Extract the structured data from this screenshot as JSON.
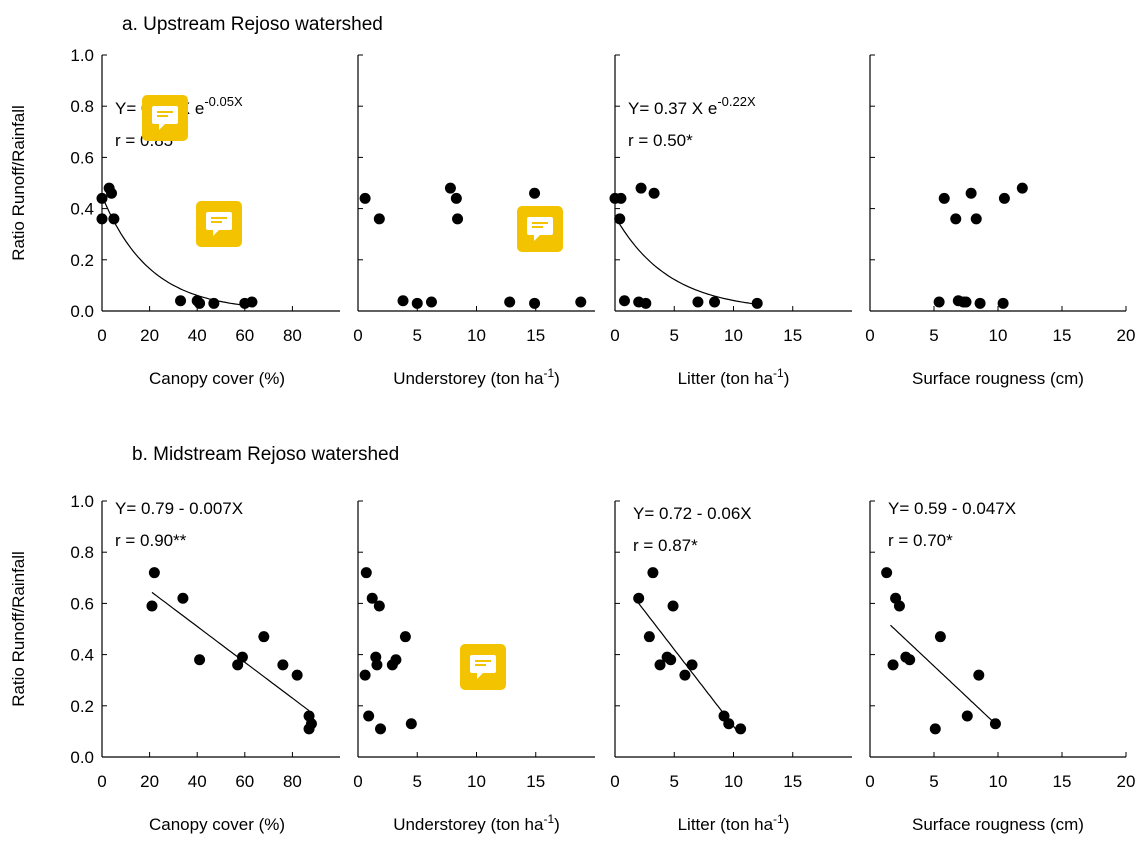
{
  "chart_data": [
    {
      "type": "scatter",
      "row_title": "a. Upstream Rejoso watershed",
      "ylabel": "Ratio Runoff/Rainfall",
      "ylim": [
        0,
        1.0
      ],
      "yticks": [
        "0.0",
        "0.2",
        "0.4",
        "0.6",
        "0.8",
        "1.0"
      ],
      "panels": [
        {
          "xlabel": "Canopy cover (%)",
          "xlim": [
            0,
            100
          ],
          "xticks": [
            "0",
            "20",
            "40",
            "60",
            "80"
          ],
          "points": [
            [
              0,
              0.44
            ],
            [
              0,
              0.36
            ],
            [
              3,
              0.48
            ],
            [
              4,
              0.46
            ],
            [
              5,
              0.36
            ],
            [
              33,
              0.04
            ],
            [
              40,
              0.04
            ],
            [
              41,
              0.03
            ],
            [
              47,
              0.03
            ],
            [
              60,
              0.03
            ],
            [
              63,
              0.035
            ]
          ],
          "fit": {
            "kind": "exp",
            "a": 0.45,
            "b": 0.05,
            "x_from": 0,
            "x_to": 60
          },
          "equation": [
            "Y= 0.45 X e",
            "-0.05X"
          ],
          "r_text": "r = 0.85**"
        },
        {
          "xlabel": "Understorey (ton ha",
          "xlabel_sup": "-1",
          "xlabel_end": ")",
          "xlim": [
            0,
            20
          ],
          "xticks": [
            "0",
            "5",
            "10",
            "15"
          ],
          "points": [
            [
              0.6,
              0.44
            ],
            [
              1.8,
              0.36
            ],
            [
              3.8,
              0.04
            ],
            [
              5,
              0.03
            ],
            [
              6.2,
              0.035
            ],
            [
              7.8,
              0.48
            ],
            [
              8.3,
              0.44
            ],
            [
              8.4,
              0.36
            ],
            [
              12.8,
              0.035
            ],
            [
              14.9,
              0.46
            ],
            [
              14.9,
              0.03
            ],
            [
              18.8,
              0.035
            ]
          ],
          "fit": null,
          "equation": null,
          "r_text": null
        },
        {
          "xlabel": "Litter (ton ha",
          "xlabel_sup": "-1",
          "xlabel_end": ")",
          "xlim": [
            0,
            20
          ],
          "xticks": [
            "0",
            "5",
            "10",
            "15"
          ],
          "points": [
            [
              0,
              0.44
            ],
            [
              0.4,
              0.36
            ],
            [
              0.5,
              0.44
            ],
            [
              0.8,
              0.04
            ],
            [
              2,
              0.035
            ],
            [
              2.2,
              0.48
            ],
            [
              2.6,
              0.03
            ],
            [
              3.3,
              0.46
            ],
            [
              7,
              0.035
            ],
            [
              8.4,
              0.035
            ],
            [
              12,
              0.03
            ]
          ],
          "fit": {
            "kind": "exp",
            "a": 0.37,
            "b": 0.22,
            "x_from": 0,
            "x_to": 12
          },
          "equation": [
            "Y= 0.37 X e",
            "-0.22X"
          ],
          "r_text": "r = 0.50*"
        },
        {
          "xlabel": "Surface rougness (cm)",
          "xlim": [
            0,
            20
          ],
          "xticks": [
            "0",
            "5",
            "10",
            "15",
            "20"
          ],
          "points": [
            [
              5.4,
              0.035
            ],
            [
              5.8,
              0.44
            ],
            [
              6.7,
              0.36
            ],
            [
              6.9,
              0.04
            ],
            [
              7.3,
              0.035
            ],
            [
              7.5,
              0.035
            ],
            [
              7.9,
              0.46
            ],
            [
              8.3,
              0.36
            ],
            [
              8.6,
              0.03
            ],
            [
              10.4,
              0.03
            ],
            [
              10.5,
              0.44
            ],
            [
              11.9,
              0.48
            ]
          ],
          "fit": null,
          "equation": null,
          "r_text": null
        }
      ]
    },
    {
      "type": "scatter",
      "row_title": "b. Midstream Rejoso watershed",
      "ylabel": "Ratio Runoff/Rainfall",
      "ylim": [
        0,
        1.0
      ],
      "yticks": [
        "0.0",
        "0.2",
        "0.4",
        "0.6",
        "0.8",
        "1.0"
      ],
      "panels": [
        {
          "xlabel": "Canopy cover (%)",
          "xlim": [
            0,
            100
          ],
          "xticks": [
            "0",
            "20",
            "40",
            "60",
            "80"
          ],
          "points": [
            [
              21,
              0.59
            ],
            [
              22,
              0.72
            ],
            [
              34,
              0.62
            ],
            [
              41,
              0.38
            ],
            [
              57,
              0.36
            ],
            [
              59,
              0.39
            ],
            [
              68,
              0.47
            ],
            [
              76,
              0.36
            ],
            [
              82,
              0.32
            ],
            [
              87,
              0.16
            ],
            [
              87,
              0.11
            ],
            [
              88,
              0.13
            ]
          ],
          "fit": {
            "kind": "linear",
            "a": 0.79,
            "b": -0.007,
            "x_from": 21,
            "x_to": 87
          },
          "equation": [
            "Y= 0.79 - 0.007X"
          ],
          "r_text": "r = 0.90**"
        },
        {
          "xlabel": "Understorey (ton ha",
          "xlabel_sup": "-1",
          "xlabel_end": ")",
          "xlim": [
            0,
            20
          ],
          "xticks": [
            "0",
            "5",
            "10",
            "15"
          ],
          "points": [
            [
              0.6,
              0.32
            ],
            [
              0.7,
              0.72
            ],
            [
              0.9,
              0.16
            ],
            [
              1.2,
              0.62
            ],
            [
              1.5,
              0.39
            ],
            [
              1.6,
              0.36
            ],
            [
              1.8,
              0.59
            ],
            [
              1.9,
              0.11
            ],
            [
              2.9,
              0.36
            ],
            [
              3.2,
              0.38
            ],
            [
              4.0,
              0.47
            ],
            [
              4.5,
              0.13
            ]
          ],
          "fit": null,
          "equation": null,
          "r_text": null
        },
        {
          "xlabel": "Litter (ton ha",
          "xlabel_sup": "-1",
          "xlabel_end": ")",
          "xlim": [
            0,
            20
          ],
          "xticks": [
            "0",
            "5",
            "10",
            "15"
          ],
          "points": [
            [
              2.0,
              0.62
            ],
            [
              2.9,
              0.47
            ],
            [
              3.2,
              0.72
            ],
            [
              3.8,
              0.36
            ],
            [
              4.4,
              0.39
            ],
            [
              4.7,
              0.38
            ],
            [
              4.9,
              0.59
            ],
            [
              5.9,
              0.32
            ],
            [
              6.5,
              0.36
            ],
            [
              9.2,
              0.16
            ],
            [
              9.6,
              0.13
            ],
            [
              10.6,
              0.11
            ]
          ],
          "fit": {
            "kind": "linear",
            "a": 0.72,
            "b": -0.06,
            "x_from": 2,
            "x_to": 10.2
          },
          "equation": [
            "Y= 0.72 - 0.06X"
          ],
          "r_text": "r = 0.87*"
        },
        {
          "xlabel": "Surface rougness (cm)",
          "xlim": [
            0,
            20
          ],
          "xticks": [
            "0",
            "5",
            "10",
            "15",
            "20"
          ],
          "points": [
            [
              1.3,
              0.72
            ],
            [
              1.8,
              0.36
            ],
            [
              2.0,
              0.62
            ],
            [
              2.3,
              0.59
            ],
            [
              2.8,
              0.39
            ],
            [
              3.1,
              0.38
            ],
            [
              5.1,
              0.11
            ],
            [
              5.5,
              0.47
            ],
            [
              7.6,
              0.16
            ],
            [
              8.5,
              0.32
            ],
            [
              9.8,
              0.13
            ]
          ],
          "fit": {
            "kind": "linear",
            "a": 0.59,
            "b": -0.047,
            "x_from": 1.6,
            "x_to": 9.8
          },
          "equation": [
            "Y= 0.59 - 0.047X"
          ],
          "r_text": "r = 0.70*"
        }
      ]
    }
  ],
  "comment_badges": [
    {
      "name": "comment-badge-1",
      "color": "#f4c300"
    },
    {
      "name": "comment-badge-2",
      "color": "#f4c300"
    },
    {
      "name": "comment-badge-3",
      "color": "#f4c300"
    },
    {
      "name": "comment-badge-4",
      "color": "#f4c300"
    }
  ],
  "colors": {
    "marker": "#000000",
    "axis": "#000000",
    "badge": "#f4c300"
  }
}
